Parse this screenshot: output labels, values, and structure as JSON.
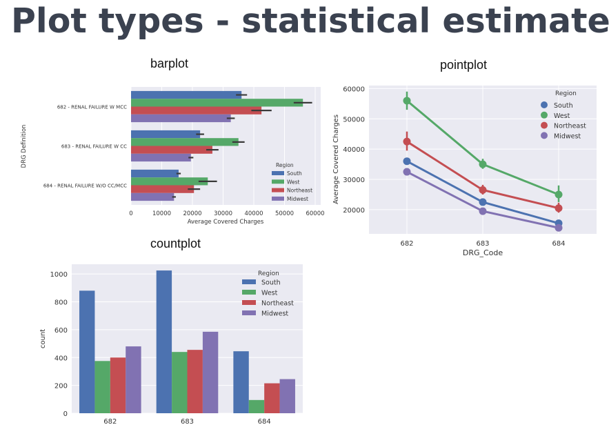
{
  "slide": {
    "title": "Plot types - statistical estimates"
  },
  "colors": {
    "South": "#4c72b0",
    "West": "#55a868",
    "Northeast": "#c44e52",
    "Midwest": "#8172b2",
    "plot_bg": "#eaeaf2"
  },
  "chart_data": [
    {
      "type": "bar",
      "orientation": "horizontal",
      "title": "barplot",
      "xlabel": "Average Covered Charges",
      "ylabel": "DRG Definition",
      "categories": [
        "682 - RENAL FAILURE W MCC",
        "683 - RENAL FAILURE W CC",
        "684 - RENAL FAILURE W/O CC/MCC"
      ],
      "series": [
        {
          "name": "South",
          "values": [
            36000,
            22500,
            15500
          ],
          "err": [
            37800,
            23800,
            16200
          ]
        },
        {
          "name": "West",
          "values": [
            56000,
            35000,
            25000
          ],
          "err": [
            59000,
            37000,
            28000
          ]
        },
        {
          "name": "Northeast",
          "values": [
            42500,
            26500,
            20500
          ],
          "err": [
            45800,
            28500,
            22500
          ]
        },
        {
          "name": "Midwest",
          "values": [
            32500,
            19500,
            14000
          ],
          "err": [
            33800,
            20300,
            14600
          ]
        }
      ],
      "xlim": [
        0,
        60000
      ],
      "xticks": [
        "0",
        "10000",
        "20000",
        "30000",
        "40000",
        "50000",
        "60000"
      ],
      "legend": {
        "title": "Region",
        "placement": "lower-right"
      }
    },
    {
      "type": "line",
      "title": "pointplot",
      "xlabel": "DRG_Code",
      "ylabel": "Average Covered Charges",
      "categories": [
        "682",
        "683",
        "684"
      ],
      "series": [
        {
          "name": "South",
          "values": [
            36000,
            22500,
            15500
          ],
          "ci": [
            [
              35000,
              37000
            ],
            [
              21800,
              23400
            ],
            [
              15000,
              16100
            ]
          ]
        },
        {
          "name": "West",
          "values": [
            56000,
            35000,
            25000
          ],
          "ci": [
            [
              53000,
              59000
            ],
            [
              33500,
              36800
            ],
            [
              22500,
              28000
            ]
          ]
        },
        {
          "name": "Northeast",
          "values": [
            42500,
            26500,
            20500
          ],
          "ci": [
            [
              39500,
              45800
            ],
            [
              25000,
              28200
            ],
            [
              19000,
              22300
            ]
          ]
        },
        {
          "name": "Midwest",
          "values": [
            32500,
            19500,
            14000
          ],
          "ci": [
            [
              31500,
              33600
            ],
            [
              19000,
              20100
            ],
            [
              13500,
              14700
            ]
          ]
        }
      ],
      "ylim": [
        12000,
        61000
      ],
      "yticks": [
        "20000",
        "30000",
        "40000",
        "50000",
        "60000"
      ],
      "legend": {
        "title": "Region",
        "placement": "top-right"
      }
    },
    {
      "type": "bar",
      "title": "countplot",
      "xlabel": "",
      "ylabel": "count",
      "categories": [
        "682",
        "683",
        "684"
      ],
      "series": [
        {
          "name": "South",
          "values": [
            880,
            1025,
            445
          ]
        },
        {
          "name": "West",
          "values": [
            375,
            440,
            95
          ]
        },
        {
          "name": "Northeast",
          "values": [
            400,
            455,
            215
          ]
        },
        {
          "name": "Midwest",
          "values": [
            480,
            585,
            245
          ]
        }
      ],
      "ylim": [
        0,
        1070
      ],
      "yticks": [
        "0",
        "200",
        "400",
        "600",
        "800",
        "1000"
      ],
      "legend": {
        "title": "Region",
        "placement": "top-right"
      }
    }
  ]
}
